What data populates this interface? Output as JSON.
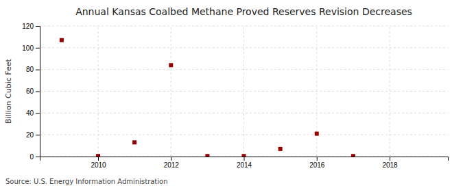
{
  "chart_data": {
    "type": "scatter",
    "title": "Annual Kansas Coalbed Methane Proved Reserves Revision Decreases",
    "ylabel": "Billion Cubic Feet",
    "annotations": [
      "Source: U.S. Energy Information Administration"
    ],
    "x": [
      2009,
      2010,
      2011,
      2012,
      2013,
      2014,
      2015,
      2016,
      2017
    ],
    "values": [
      107,
      0.5,
      13,
      84,
      0.5,
      0.5,
      7,
      21,
      0.5
    ],
    "color": "#990000",
    "marker": "square",
    "xlim": [
      2008.4,
      2019.6
    ],
    "ylim": [
      0,
      120
    ],
    "xticks": [
      2010,
      2012,
      2014,
      2016,
      2018
    ],
    "yticks": [
      0,
      20,
      40,
      60,
      80,
      100,
      120
    ],
    "grid": true
  }
}
